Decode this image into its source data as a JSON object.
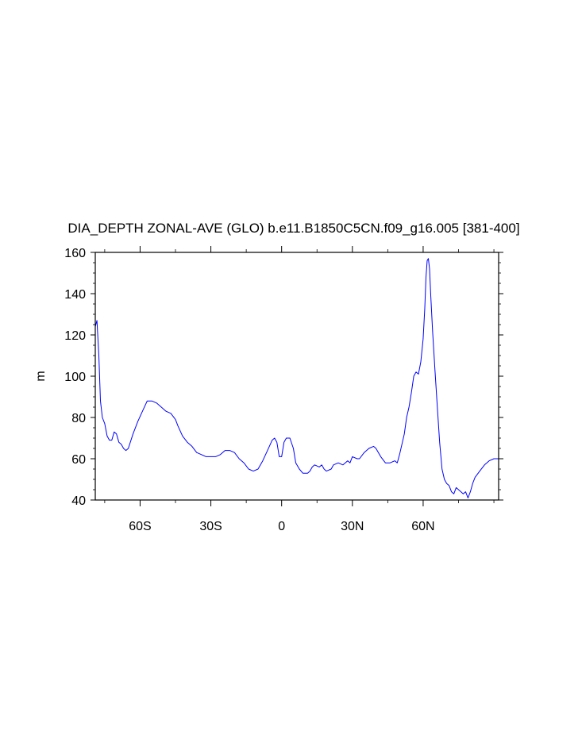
{
  "chart_data": {
    "type": "line",
    "title": "DIA_DEPTH ZONAL-AVE (GLO) b.e11.B1850C5CN.f09_g16.005 [381-400]",
    "xlabel": "",
    "ylabel": "m",
    "xlim": [
      -79,
      92
    ],
    "ylim": [
      40,
      160
    ],
    "x_ticks": [
      -60,
      -30,
      0,
      30,
      60
    ],
    "x_tick_labels": [
      "60S",
      "30S",
      "0",
      "30N",
      "60N"
    ],
    "y_ticks": [
      40,
      60,
      80,
      100,
      120,
      140,
      160
    ],
    "y_tick_labels": [
      "40",
      "60",
      "80",
      "100",
      "120",
      "140",
      "160"
    ],
    "grid": false,
    "line_color": "#0000ff",
    "series": [
      {
        "values": [
          [
            -79,
            124
          ],
          [
            -78.3,
            127
          ],
          [
            -77.5,
            110
          ],
          [
            -76.8,
            88
          ],
          [
            -76,
            80
          ],
          [
            -75,
            77
          ],
          [
            -74,
            71
          ],
          [
            -73,
            69
          ],
          [
            -72,
            69
          ],
          [
            -71,
            73
          ],
          [
            -70,
            72
          ],
          [
            -69,
            68
          ],
          [
            -68,
            67
          ],
          [
            -67,
            65
          ],
          [
            -66,
            64
          ],
          [
            -65,
            65
          ],
          [
            -63,
            72
          ],
          [
            -61,
            78
          ],
          [
            -59,
            83
          ],
          [
            -57,
            88
          ],
          [
            -55,
            88
          ],
          [
            -53,
            87
          ],
          [
            -51,
            85
          ],
          [
            -49,
            83
          ],
          [
            -47,
            82
          ],
          [
            -45,
            79
          ],
          [
            -44,
            76
          ],
          [
            -42,
            71
          ],
          [
            -40,
            68
          ],
          [
            -38,
            66
          ],
          [
            -36,
            63
          ],
          [
            -34,
            62
          ],
          [
            -32,
            61
          ],
          [
            -30,
            61
          ],
          [
            -28,
            61
          ],
          [
            -26,
            62
          ],
          [
            -24,
            64
          ],
          [
            -22,
            64
          ],
          [
            -20,
            63
          ],
          [
            -18,
            60
          ],
          [
            -16,
            58
          ],
          [
            -14,
            55
          ],
          [
            -12,
            54
          ],
          [
            -10,
            55
          ],
          [
            -8,
            59
          ],
          [
            -6,
            64
          ],
          [
            -4,
            69
          ],
          [
            -3,
            70
          ],
          [
            -2,
            68
          ],
          [
            -1,
            61
          ],
          [
            0,
            61
          ],
          [
            1,
            68
          ],
          [
            2,
            70
          ],
          [
            3.5,
            70
          ],
          [
            5,
            65
          ],
          [
            6,
            58
          ],
          [
            7.5,
            55
          ],
          [
            9,
            53
          ],
          [
            11,
            53
          ],
          [
            12,
            54
          ],
          [
            13,
            56
          ],
          [
            14,
            57
          ],
          [
            16,
            56
          ],
          [
            17,
            57
          ],
          [
            18,
            55
          ],
          [
            19,
            54
          ],
          [
            21,
            55
          ],
          [
            22,
            57
          ],
          [
            24,
            58
          ],
          [
            26,
            57
          ],
          [
            28,
            59
          ],
          [
            29,
            58
          ],
          [
            30,
            61
          ],
          [
            32,
            60
          ],
          [
            33,
            60
          ],
          [
            35,
            63
          ],
          [
            37,
            65
          ],
          [
            39,
            66
          ],
          [
            40,
            65
          ],
          [
            42,
            61
          ],
          [
            44,
            58
          ],
          [
            46,
            58
          ],
          [
            48,
            59
          ],
          [
            49,
            58
          ],
          [
            50,
            62
          ],
          [
            51,
            67
          ],
          [
            52,
            72
          ],
          [
            53,
            80
          ],
          [
            54,
            85
          ],
          [
            55,
            92
          ],
          [
            56,
            100
          ],
          [
            57,
            102
          ],
          [
            58,
            101
          ],
          [
            59,
            107
          ],
          [
            60,
            118
          ],
          [
            60.7,
            133
          ],
          [
            61.2,
            148
          ],
          [
            61.7,
            156
          ],
          [
            62.2,
            157
          ],
          [
            62.7,
            152
          ],
          [
            63.2,
            140
          ],
          [
            64,
            122
          ],
          [
            65,
            103
          ],
          [
            66,
            85
          ],
          [
            67,
            68
          ],
          [
            68,
            55
          ],
          [
            69,
            50
          ],
          [
            70,
            48
          ],
          [
            71,
            47
          ],
          [
            72,
            44
          ],
          [
            73,
            43
          ],
          [
            74,
            46
          ],
          [
            75,
            45
          ],
          [
            76,
            44
          ],
          [
            77,
            43
          ],
          [
            78,
            44
          ],
          [
            79,
            41
          ],
          [
            80,
            44
          ],
          [
            81,
            48
          ],
          [
            82,
            51
          ],
          [
            84,
            54
          ],
          [
            86,
            57
          ],
          [
            88,
            59
          ],
          [
            90,
            60
          ],
          [
            92,
            60
          ]
        ]
      }
    ]
  }
}
